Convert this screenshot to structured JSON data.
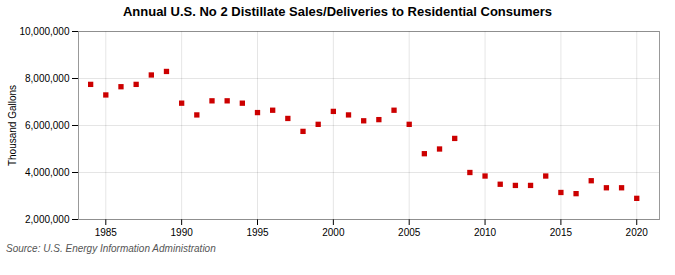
{
  "chart_data": {
    "type": "scatter",
    "title": "Annual U.S. No 2 Distillate Sales/Deliveries to Residential Consumers",
    "ylabel": "Thousand Gallons",
    "source": "Source: U.S. Energy Information Administration",
    "color": "#cc0000",
    "marker": "square",
    "grid": true,
    "x": [
      1984,
      1985,
      1986,
      1987,
      1988,
      1989,
      1990,
      1991,
      1992,
      1993,
      1994,
      1995,
      1996,
      1997,
      1998,
      1999,
      2000,
      2001,
      2002,
      2003,
      2004,
      2005,
      2006,
      2007,
      2008,
      2009,
      2010,
      2011,
      2012,
      2013,
      2014,
      2015,
      2016,
      2017,
      2018,
      2019,
      2020
    ],
    "values": [
      7750000,
      7300000,
      7650000,
      7750000,
      8150000,
      8300000,
      6950000,
      6450000,
      7050000,
      7050000,
      6950000,
      6550000,
      6650000,
      6300000,
      5750000,
      6050000,
      6600000,
      6450000,
      6200000,
      6250000,
      6650000,
      6050000,
      4800000,
      5000000,
      5450000,
      4000000,
      3850000,
      3500000,
      3450000,
      3450000,
      3850000,
      3150000,
      3100000,
      3650000,
      3350000,
      3350000,
      2900000
    ],
    "xlim": [
      1983.2,
      2021.5
    ],
    "xticks": [
      1985,
      1990,
      1995,
      2000,
      2005,
      2010,
      2015,
      2020
    ],
    "ylim": [
      2000000,
      10000000
    ],
    "yticks": [
      {
        "value": 2000000,
        "label": "2,000,000"
      },
      {
        "value": 4000000,
        "label": "4,000,000"
      },
      {
        "value": 6000000,
        "label": "6,000,000"
      },
      {
        "value": 8000000,
        "label": "8,000,000"
      },
      {
        "value": 10000000,
        "label": "10,000,000"
      }
    ]
  }
}
